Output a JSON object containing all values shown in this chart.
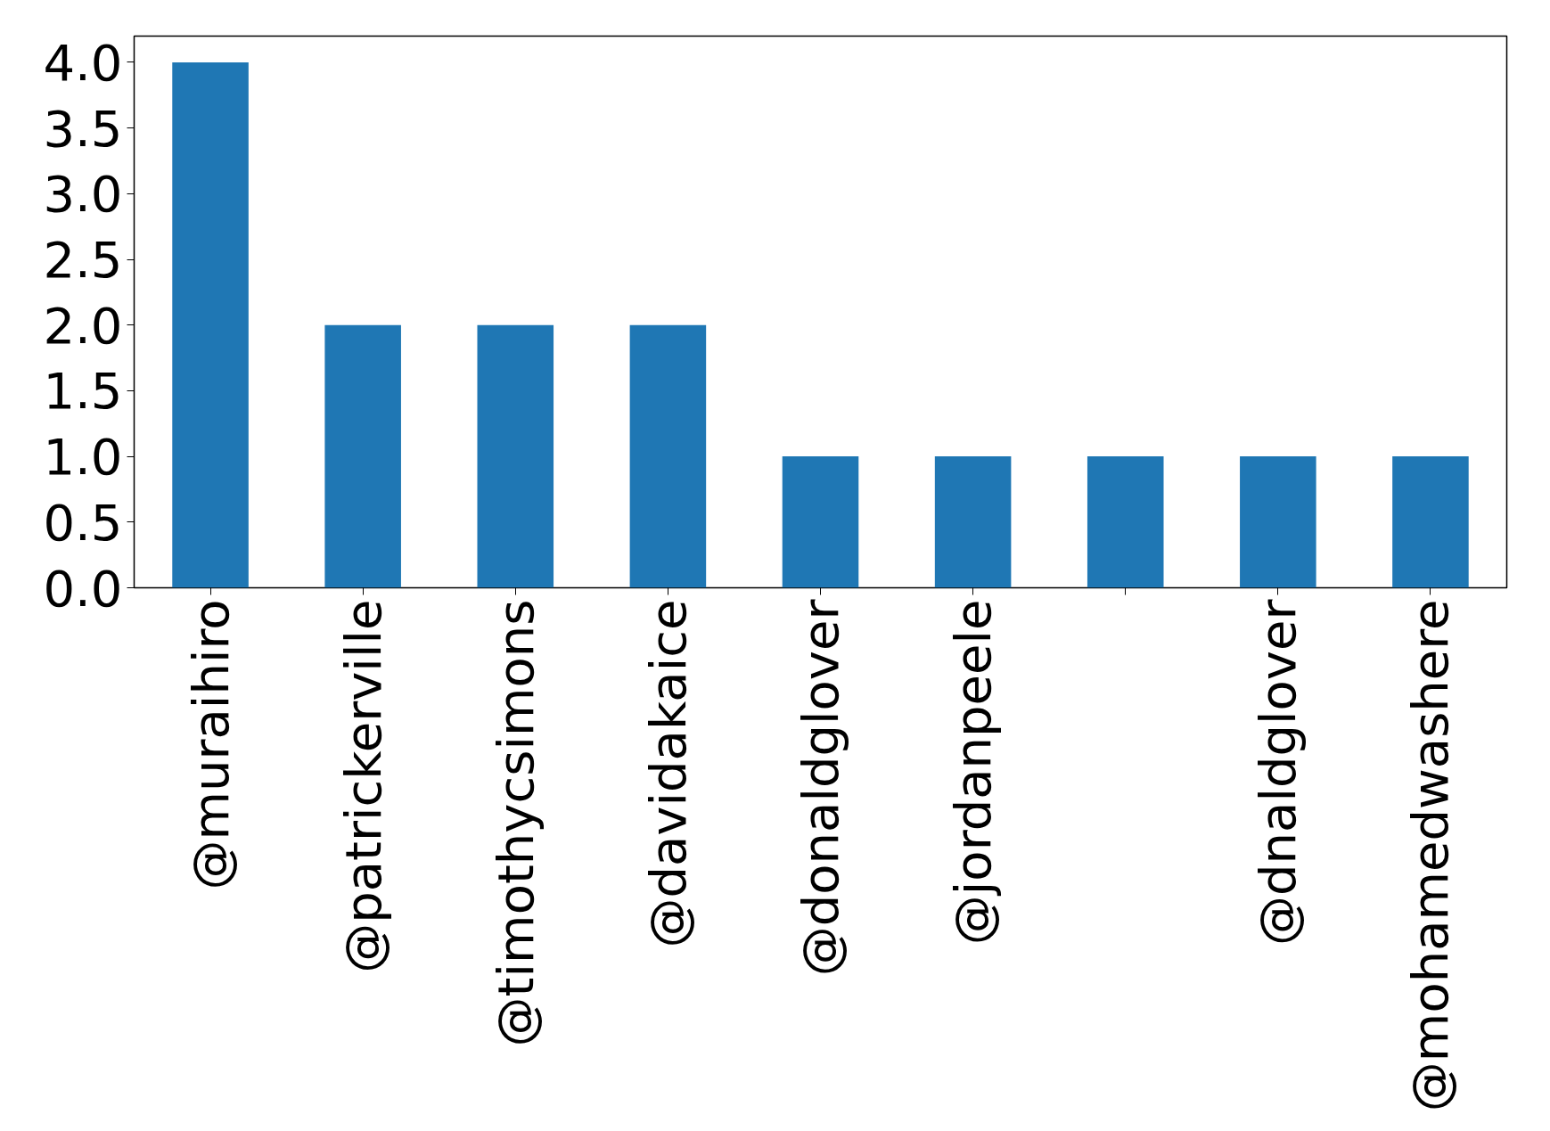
{
  "chart_data": {
    "type": "bar",
    "categories": [
      "@muraihiro",
      "@patrickerville",
      "@timothycsimons",
      "@davidakaice",
      "@donaldglover",
      "@jordanpeele",
      null,
      "@dnaldglover",
      "@mohamedwashere"
    ],
    "values": [
      4,
      2,
      2,
      2,
      1,
      1,
      1,
      1,
      1
    ],
    "color": "#1f77b4",
    "ylim": [
      0,
      4.2
    ],
    "yticks": [
      {
        "value": 0,
        "label": "0.0"
      },
      {
        "value": 0.5,
        "label": "0.5"
      },
      {
        "value": 1,
        "label": "1.0"
      },
      {
        "value": 1.5,
        "label": "1.5"
      },
      {
        "value": 2,
        "label": "2.0"
      },
      {
        "value": 2.5,
        "label": "2.5"
      },
      {
        "value": 3,
        "label": "3.0"
      },
      {
        "value": 3.5,
        "label": "3.5"
      },
      {
        "value": 4,
        "label": "4.0"
      }
    ],
    "grid": false
  }
}
